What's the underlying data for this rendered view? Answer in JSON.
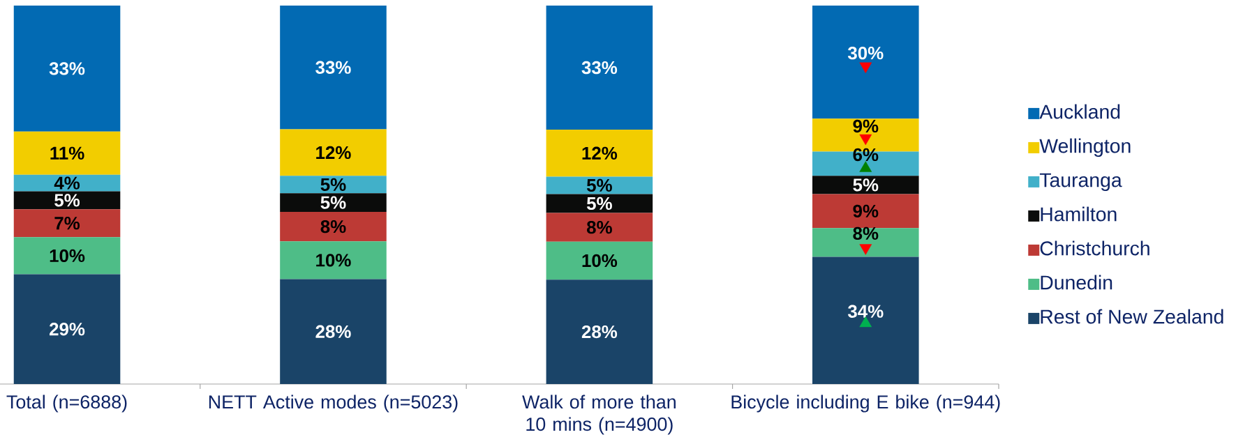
{
  "chart_data": {
    "type": "bar",
    "stacked": true,
    "legend": "right",
    "categories": [
      "Total (n=6888)",
      "NETT Active modes (n=5023)",
      "Walk of more than 10 mins (n=4900)",
      "Bicycle including E bike (n=944)"
    ],
    "series": [
      {
        "name": "Rest of New Zealand",
        "color": "#1a4468",
        "values": [
          29.0,
          27.7,
          27.6,
          33.6
        ],
        "value_labels": [
          "29%",
          "28%",
          "28%",
          "34%"
        ]
      },
      {
        "name": "Dunedin",
        "color": "#4ebd87",
        "values": [
          9.8,
          10.0,
          10.0,
          7.6
        ],
        "value_labels": [
          "10%",
          "10%",
          "10%",
          "8%"
        ]
      },
      {
        "name": "Christchurch",
        "color": "#bd3a35",
        "values": [
          7.4,
          7.8,
          7.6,
          9.0
        ],
        "value_labels": [
          "7%",
          "8%",
          "8%",
          "9%"
        ]
      },
      {
        "name": "Hamilton",
        "color": "#0b0c0b",
        "values": [
          4.7,
          4.9,
          5.0,
          4.8
        ],
        "value_labels": [
          "5%",
          "5%",
          "5%",
          "5%"
        ]
      },
      {
        "name": "Tauranga",
        "color": "#41b0c9",
        "values": [
          4.4,
          4.6,
          4.6,
          6.4
        ],
        "value_labels": [
          "4%",
          "5%",
          "5%",
          "6%"
        ]
      },
      {
        "name": "Wellington",
        "color": "#f2cd00",
        "values": [
          11.4,
          12.3,
          12.4,
          8.7
        ],
        "value_labels": [
          "11%",
          "12%",
          "12%",
          "9%"
        ]
      },
      {
        "name": "Auckland",
        "color": "#026ab3",
        "values": [
          33.3,
          32.7,
          32.8,
          29.9
        ],
        "value_labels": [
          "33%",
          "33%",
          "33%",
          "30%"
        ]
      },
      {
        "type": "scatter",
        "color": "#ff0000",
        "marker": "triangle-down",
        "x": [
          "Bicycle including E bike (n=944)",
          "Bicycle including E bike (n=944)",
          "Bicycle including E bike (n=944)"
        ],
        "values": [
          84,
          65,
          36
        ]
      },
      {
        "type": "scatter",
        "color": "#008000",
        "marker": "triangle",
        "x": [
          "Bicycle including E bike (n=944)"
        ],
        "values": [
          57
        ]
      },
      {
        "type": "scatter",
        "color": "#00b050",
        "marker": "triangle",
        "x": [
          "Bicycle including E bike (n=944)"
        ],
        "values": [
          16
        ]
      }
    ]
  }
}
